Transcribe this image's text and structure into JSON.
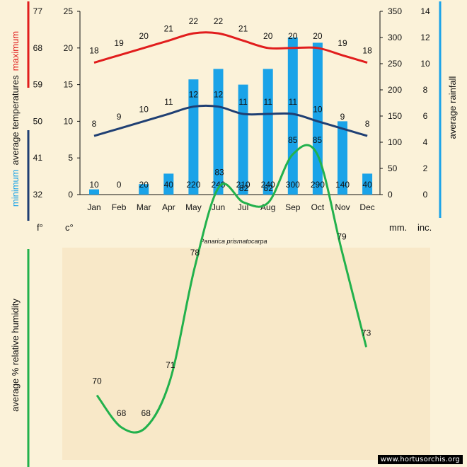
{
  "species": "Panarica prismatocarpa",
  "watermark": "www.hortusorchis.org",
  "units": {
    "fahrenheit": "f°",
    "celsius": "c°",
    "mm": "mm.",
    "inches": "inc."
  },
  "labels": {
    "maximum": "maximum",
    "minimum": "minimum",
    "average_temperatures": "average  temperatures",
    "average_rainfall": "average rainfall",
    "humidity": "average %  relative humidity"
  },
  "colors": {
    "max_temp": "#e11d1d",
    "min_temp": "#1f3f73",
    "rainfall": "#1aa3e8",
    "humidity": "#22b14c",
    "background": "#fbf2d9"
  },
  "chart_data": [
    {
      "type": "bar+line",
      "categories": [
        "Jan",
        "Feb",
        "Mar",
        "Apr",
        "May",
        "Jun",
        "Jul",
        "Aug",
        "Sep",
        "Oct",
        "Nov",
        "Dec"
      ],
      "series": [
        {
          "name": "maximum",
          "values": [
            18,
            19,
            20,
            21,
            22,
            22,
            21,
            20,
            20,
            20,
            19,
            18
          ]
        },
        {
          "name": "minimum",
          "values": [
            8,
            9,
            10,
            11,
            12,
            12,
            11,
            11,
            11,
            10,
            9,
            8
          ]
        },
        {
          "name": "average rainfall",
          "values": [
            10,
            0,
            20,
            40,
            220,
            240,
            210,
            240,
            300,
            290,
            140,
            40
          ]
        }
      ],
      "celsius_ticks": [
        0,
        5,
        10,
        15,
        20,
        25
      ],
      "fahrenheit_ticks": [
        32,
        41,
        50,
        59,
        68,
        77
      ],
      "mm_ticks": [
        0,
        50,
        100,
        150,
        200,
        250,
        300,
        350
      ],
      "inch_ticks": [
        0,
        2,
        4,
        6,
        8,
        10,
        12,
        14
      ],
      "ylim_celsius": [
        0,
        25
      ],
      "ylim_mm": [
        0,
        350
      ]
    },
    {
      "type": "line",
      "categories": [
        "Jan",
        "Feb",
        "Mar",
        "Apr",
        "May",
        "Jun",
        "Jul",
        "Aug",
        "Sep",
        "Oct",
        "Nov",
        "Dec"
      ],
      "series": [
        {
          "name": "average %  relative humidity",
          "values": [
            70,
            68,
            68,
            71,
            78,
            83,
            82,
            82,
            85,
            85,
            79,
            73
          ]
        }
      ]
    }
  ]
}
